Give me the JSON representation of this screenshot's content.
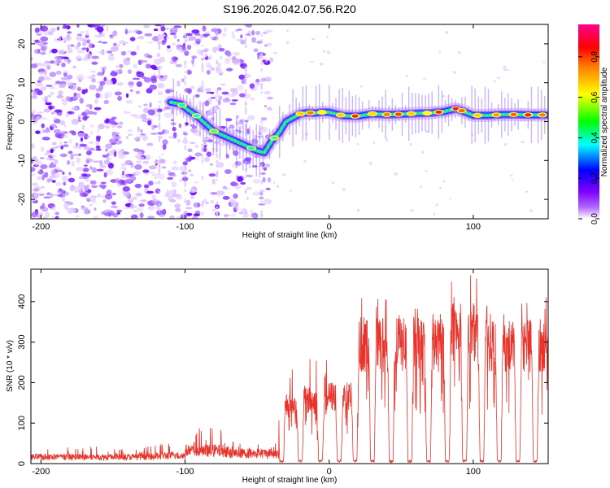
{
  "figure_title": "S196.2026.042.07.56.R20",
  "chart_data": [
    {
      "type": "heatmap",
      "title": "S196.2026.042.07.56.R20",
      "xlabel": "Height of straight line (km)",
      "ylabel": "Frequency (Hz)",
      "xlim": [
        -207,
        152
      ],
      "ylim": [
        -25,
        25
      ],
      "xticks": [
        -200,
        -100,
        0,
        100
      ],
      "yticks": [
        -20,
        -10,
        0,
        10,
        20
      ],
      "colorbar": {
        "label": "Normalized spectral amplitude",
        "range": [
          0,
          0.96
        ],
        "ticks": [
          0.0,
          0.2,
          0.4,
          0.6,
          0.8
        ],
        "colormap": [
          "#ffffff",
          "#7f00ff",
          "#0000ff",
          "#00ffff",
          "#00ff00",
          "#ffff00",
          "#ff8000",
          "#ff0000",
          "#ff00a0"
        ]
      },
      "ridge": {
        "description": "dominant frequency track",
        "x": [
          -110,
          -103,
          -98,
          -92,
          -86,
          -80,
          -74,
          -68,
          -62,
          -56,
          -50,
          -45,
          -40,
          -35,
          -30,
          -25,
          -20,
          -15,
          -10,
          -5,
          0,
          10,
          20,
          30,
          40,
          50,
          60,
          70,
          80,
          88,
          92,
          100,
          110,
          120,
          130,
          140,
          150
        ],
        "y": [
          5,
          4.5,
          3,
          1.5,
          -0.5,
          -2.5,
          -3.5,
          -4.5,
          -5.5,
          -6.5,
          -7.5,
          -8,
          -5,
          -3,
          0,
          1,
          2,
          2.3,
          2.2,
          2.4,
          2.4,
          1.5,
          1.4,
          2,
          1.8,
          1.9,
          2.1,
          2.2,
          2.6,
          3.3,
          2.8,
          1.6,
          1.6,
          1.8,
          1.8,
          1.7,
          1.7
        ]
      },
      "noise_region": {
        "x_range": [
          -207,
          -40
        ],
        "y_range": [
          -25,
          25
        ],
        "level": "low (0.0-0.2)"
      }
    },
    {
      "type": "line",
      "xlabel": "Height of straight line (km)",
      "ylabel": "SNR (10 * v/v)",
      "xlim": [
        -207,
        152
      ],
      "ylim": [
        0,
        480
      ],
      "xticks": [
        -200,
        -100,
        0,
        100
      ],
      "yticks": [
        0,
        100,
        200,
        300,
        400
      ],
      "color": "#e8322a",
      "baseline_segments": [
        {
          "x_range": [
            -207,
            -120
          ],
          "mean": 18,
          "max_spike": 45
        },
        {
          "x_range": [
            -120,
            -100
          ],
          "mean": 22,
          "max_spike": 55
        },
        {
          "x_range": [
            -100,
            -70
          ],
          "mean": 35,
          "max_spike": 90
        },
        {
          "x_range": [
            -70,
            -35
          ],
          "mean": 28,
          "max_spike": 60
        },
        {
          "x_range": [
            -35,
            -18
          ],
          "mean": 150,
          "max_spike": 270
        },
        {
          "x_range": [
            -18,
            0
          ],
          "mean": 160,
          "max_spike": 260
        },
        {
          "x_range": [
            0,
            18
          ],
          "mean": 170,
          "max_spike": 260
        },
        {
          "x_range": [
            18,
            40
          ],
          "mean": 300,
          "max_spike": 410
        },
        {
          "x_range": [
            40,
            80
          ],
          "mean": 300,
          "max_spike": 390
        },
        {
          "x_range": [
            80,
            110
          ],
          "mean": 330,
          "max_spike": 480
        },
        {
          "x_range": [
            110,
            152
          ],
          "mean": 300,
          "max_spike": 420
        }
      ],
      "dropouts_x": [
        -33,
        -20,
        -6,
        7,
        18,
        30,
        43,
        56,
        69,
        82,
        94,
        106,
        118,
        131,
        143
      ]
    }
  ]
}
